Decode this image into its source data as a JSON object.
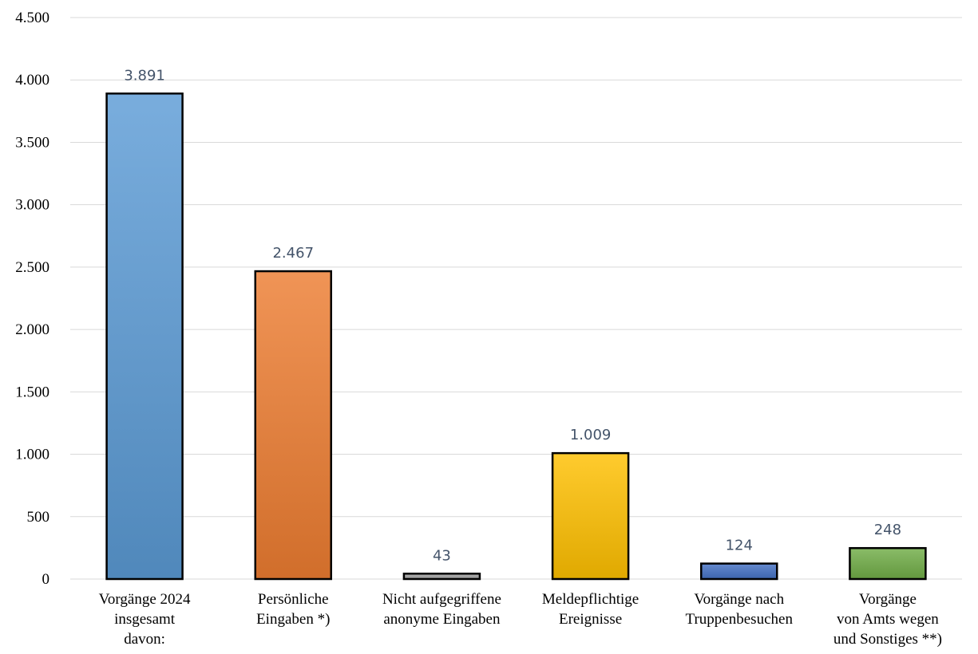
{
  "chart_data": {
    "type": "bar",
    "categories": [
      [
        "Vorgänge 2024",
        "insgesamt",
        "davon:"
      ],
      [
        "Persönliche",
        "Eingaben *)"
      ],
      [
        "Nicht aufgegriffene",
        "anonyme Eingaben"
      ],
      [
        "Meldepflichtige",
        "Ereignisse"
      ],
      [
        "Vorgänge nach",
        "Truppenbesuchen"
      ],
      [
        "Vorgänge",
        "von Amts wegen",
        "und Sonstiges **)"
      ]
    ],
    "values": [
      3891,
      2467,
      43,
      1009,
      124,
      248
    ],
    "value_labels": [
      "3.891",
      "2.467",
      "43",
      "1.009",
      "124",
      "248"
    ],
    "colors": [
      "#5b9bd5",
      "#ed7d31",
      "#a5a5a5",
      "#ffc000",
      "#4472c4",
      "#70ad47"
    ],
    "ylim": [
      0,
      4500
    ],
    "yticks": [
      0,
      500,
      1000,
      1500,
      2000,
      2500,
      3000,
      3500,
      4000,
      4500
    ],
    "ytick_labels": [
      "0",
      "500",
      "1.000",
      "1.500",
      "2.000",
      "2.500",
      "3.000",
      "3.500",
      "4.000",
      "4.500"
    ],
    "grid": true,
    "title": "",
    "xlabel": "",
    "ylabel": ""
  }
}
